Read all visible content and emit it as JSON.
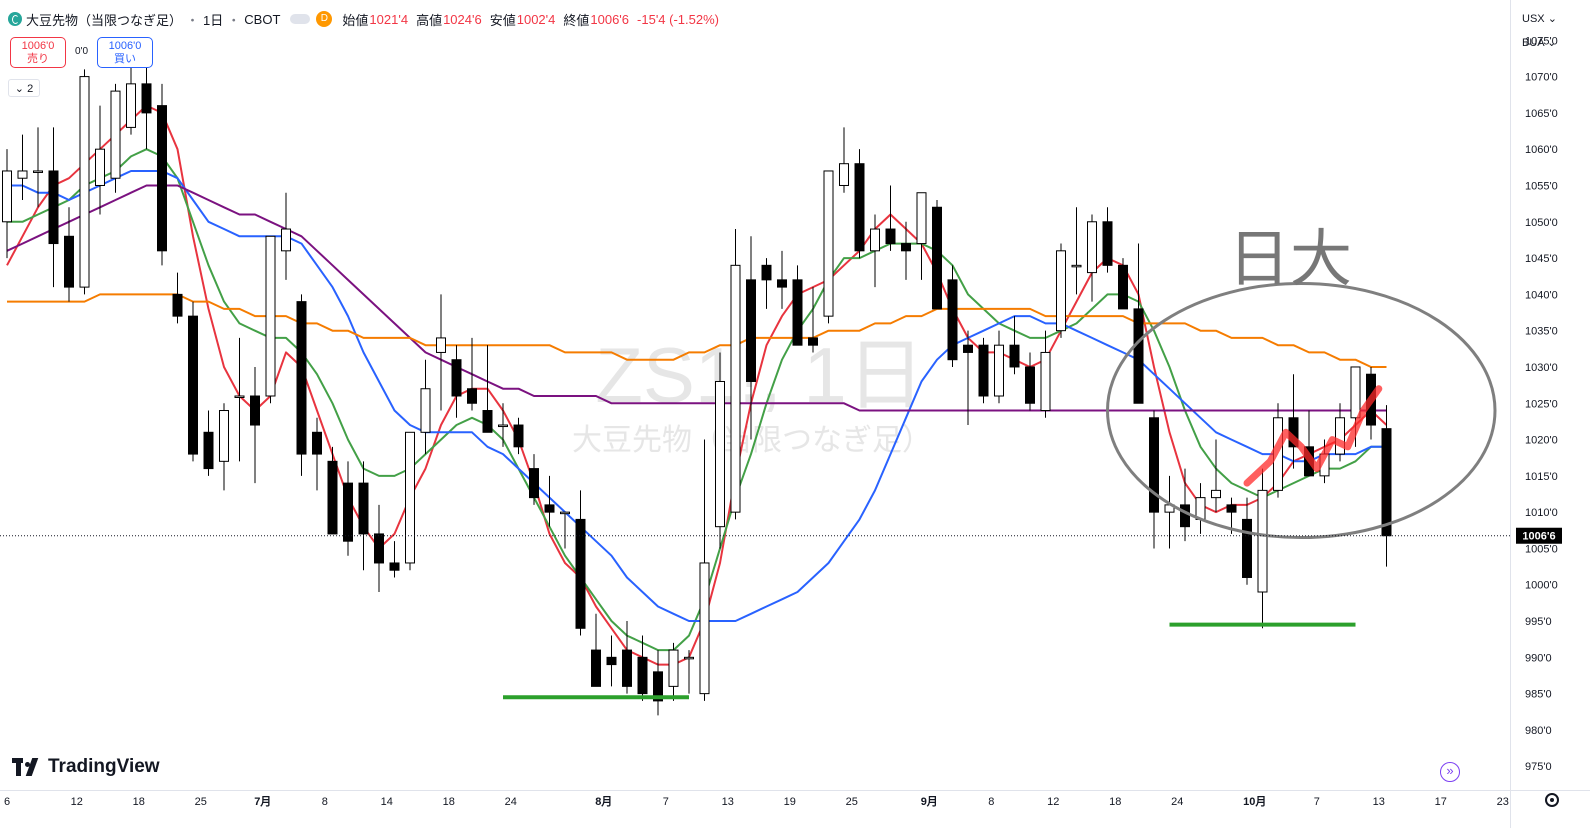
{
  "header": {
    "symbol_name": "大豆先物（当限つなぎ足）",
    "interval": "1日",
    "exchange": "CBOT",
    "open_label": "始値",
    "open_value": "1021'4",
    "high_label": "高値",
    "high_value": "1024'6",
    "low_label": "安値",
    "low_value": "1002'4",
    "close_label": "終値",
    "close_value": "1006'6",
    "change": "-15'4 (-1.52%)",
    "market_status": "D"
  },
  "trade": {
    "sell_price": "1006'0",
    "sell_label": "売り",
    "buy_price": "1006'0",
    "buy_label": "買い",
    "spread": "0'0"
  },
  "indicators_toggle": "2",
  "right_toolbar": {
    "currency": "USX",
    "unit": "BUA"
  },
  "watermark": {
    "line1": "ZS1!, 1日",
    "line2": "大豆先物（当限つなぎ足）"
  },
  "annotation_text": "日大",
  "current_price_label": "1006'6",
  "brand": "TradingView",
  "colors": {
    "up": "#ffffff",
    "down": "#000000",
    "ma_red": "#e8343f",
    "ma_green": "#43a047",
    "ma_blue": "#2962ff",
    "ma_purple": "#7b1280",
    "ma_orange": "#f57c00",
    "support": "#2ca02c",
    "circle": "#7f7f7f"
  },
  "chart_data": {
    "type": "candlestick",
    "title": "",
    "ylim": [
      972,
      1080
    ],
    "y_ticks": [
      "1075'0",
      "1070'0",
      "1065'0",
      "1060'0",
      "1055'0",
      "1050'0",
      "1045'0",
      "1040'0",
      "1035'0",
      "1030'0",
      "1025'0",
      "1020'0",
      "1015'0",
      "1010'0",
      "1005'0",
      "1000'0",
      "995'0",
      "990'0",
      "985'0",
      "980'0",
      "975'0"
    ],
    "y_tick_values": [
      1075,
      1070,
      1065,
      1060,
      1055,
      1050,
      1045,
      1040,
      1035,
      1030,
      1025,
      1020,
      1015,
      1010,
      1005,
      1000,
      995,
      990,
      985,
      980,
      975
    ],
    "x_ticks": [
      "6",
      "12",
      "18",
      "25",
      "7月",
      "8",
      "14",
      "18",
      "24",
      "8月",
      "7",
      "13",
      "19",
      "25",
      "9月",
      "8",
      "12",
      "18",
      "24",
      "10月",
      "7",
      "13",
      "17",
      "23"
    ],
    "x_tick_index": [
      0,
      4.5,
      8.5,
      12.5,
      16.5,
      20.5,
      24.5,
      28.5,
      32.5,
      38.5,
      42.5,
      46.5,
      50.5,
      54.5,
      59.5,
      63.5,
      67.5,
      71.5,
      75.5,
      80.5,
      84.5,
      88.5,
      92.5,
      96.5
    ],
    "candles": [
      {
        "o": 1050,
        "h": 1060,
        "l": 1045,
        "c": 1057
      },
      {
        "o": 1056,
        "h": 1062,
        "l": 1053,
        "c": 1057
      },
      {
        "o": 1057,
        "h": 1063,
        "l": 1052,
        "c": 1057
      },
      {
        "o": 1057,
        "h": 1063,
        "l": 1041,
        "c": 1047
      },
      {
        "o": 1048,
        "h": 1052,
        "l": 1039,
        "c": 1041
      },
      {
        "o": 1041,
        "h": 1071,
        "l": 1040,
        "c": 1070
      },
      {
        "o": 1055,
        "h": 1066,
        "l": 1051,
        "c": 1060
      },
      {
        "o": 1056,
        "h": 1069,
        "l": 1054,
        "c": 1068
      },
      {
        "o": 1063,
        "h": 1072,
        "l": 1062,
        "c": 1069
      },
      {
        "o": 1069,
        "h": 1074,
        "l": 1060,
        "c": 1065
      },
      {
        "o": 1066,
        "h": 1069,
        "l": 1044,
        "c": 1046
      },
      {
        "o": 1040,
        "h": 1043,
        "l": 1036,
        "c": 1037
      },
      {
        "o": 1037,
        "h": 1039,
        "l": 1017,
        "c": 1018
      },
      {
        "o": 1021,
        "h": 1024,
        "l": 1015,
        "c": 1016
      },
      {
        "o": 1017,
        "h": 1025,
        "l": 1013,
        "c": 1024
      },
      {
        "o": 1026,
        "h": 1034,
        "l": 1017,
        "c": 1026
      },
      {
        "o": 1026,
        "h": 1030,
        "l": 1014,
        "c": 1022
      },
      {
        "o": 1026,
        "h": 1048,
        "l": 1025,
        "c": 1048
      },
      {
        "o": 1046,
        "h": 1054,
        "l": 1042,
        "c": 1049
      },
      {
        "o": 1039,
        "h": 1040,
        "l": 1015,
        "c": 1018
      },
      {
        "o": 1021,
        "h": 1023,
        "l": 1013,
        "c": 1018
      },
      {
        "o": 1017,
        "h": 1019,
        "l": 1007,
        "c": 1007
      },
      {
        "o": 1014,
        "h": 1017,
        "l": 1004,
        "c": 1006
      },
      {
        "o": 1014,
        "h": 1017,
        "l": 1002,
        "c": 1007
      },
      {
        "o": 1007,
        "h": 1011,
        "l": 999,
        "c": 1003
      },
      {
        "o": 1003,
        "h": 1006,
        "l": 1001,
        "c": 1002
      },
      {
        "o": 1003,
        "h": 1021,
        "l": 1002,
        "c": 1021
      },
      {
        "o": 1021,
        "h": 1031,
        "l": 1018,
        "c": 1027
      },
      {
        "o": 1032,
        "h": 1040,
        "l": 1024,
        "c": 1034
      },
      {
        "o": 1031,
        "h": 1033,
        "l": 1023,
        "c": 1026
      },
      {
        "o": 1027,
        "h": 1034,
        "l": 1024,
        "c": 1025
      },
      {
        "o": 1024,
        "h": 1033,
        "l": 1022,
        "c": 1021
      },
      {
        "o": 1022,
        "h": 1025,
        "l": 1019,
        "c": 1022
      },
      {
        "o": 1022,
        "h": 1023,
        "l": 1018,
        "c": 1019
      },
      {
        "o": 1016,
        "h": 1018,
        "l": 1011,
        "c": 1012
      },
      {
        "o": 1011,
        "h": 1015,
        "l": 1008,
        "c": 1010
      },
      {
        "o": 1010,
        "h": 1010,
        "l": 1005,
        "c": 1010
      },
      {
        "o": 1009,
        "h": 1013,
        "l": 993,
        "c": 994
      },
      {
        "o": 991,
        "h": 996,
        "l": 987,
        "c": 986
      },
      {
        "o": 990,
        "h": 993,
        "l": 986,
        "c": 989
      },
      {
        "o": 991,
        "h": 995,
        "l": 985,
        "c": 986
      },
      {
        "o": 990,
        "h": 993,
        "l": 984,
        "c": 985
      },
      {
        "o": 988,
        "h": 991,
        "l": 982,
        "c": 984
      },
      {
        "o": 986,
        "h": 992,
        "l": 984,
        "c": 991
      },
      {
        "o": 990,
        "h": 991,
        "l": 985,
        "c": 990
      },
      {
        "o": 985,
        "h": 1020,
        "l": 984,
        "c": 1003
      },
      {
        "o": 1008,
        "h": 1032,
        "l": 1005,
        "c": 1028
      },
      {
        "o": 1010,
        "h": 1049,
        "l": 1009,
        "c": 1044
      },
      {
        "o": 1042,
        "h": 1048,
        "l": 1020,
        "c": 1028
      },
      {
        "o": 1044,
        "h": 1045,
        "l": 1038,
        "c": 1042
      },
      {
        "o": 1042,
        "h": 1046,
        "l": 1038,
        "c": 1041
      },
      {
        "o": 1042,
        "h": 1044,
        "l": 1033,
        "c": 1033
      },
      {
        "o": 1034,
        "h": 1041,
        "l": 1032,
        "c": 1033
      },
      {
        "o": 1037,
        "h": 1057,
        "l": 1036,
        "c": 1057
      },
      {
        "o": 1055,
        "h": 1063,
        "l": 1054,
        "c": 1058
      },
      {
        "o": 1058,
        "h": 1060,
        "l": 1045,
        "c": 1046
      },
      {
        "o": 1046,
        "h": 1051,
        "l": 1041,
        "c": 1049
      },
      {
        "o": 1049,
        "h": 1055,
        "l": 1046,
        "c": 1047
      },
      {
        "o": 1047,
        "h": 1050,
        "l": 1042,
        "c": 1046
      },
      {
        "o": 1047,
        "h": 1054,
        "l": 1042,
        "c": 1054
      },
      {
        "o": 1052,
        "h": 1053,
        "l": 1038,
        "c": 1038
      },
      {
        "o": 1042,
        "h": 1044,
        "l": 1030,
        "c": 1031
      },
      {
        "o": 1033,
        "h": 1035,
        "l": 1022,
        "c": 1032
      },
      {
        "o": 1033,
        "h": 1034,
        "l": 1025,
        "c": 1026
      },
      {
        "o": 1026,
        "h": 1035,
        "l": 1025,
        "c": 1033
      },
      {
        "o": 1033,
        "h": 1037,
        "l": 1029,
        "c": 1030
      },
      {
        "o": 1030,
        "h": 1032,
        "l": 1024,
        "c": 1025
      },
      {
        "o": 1024,
        "h": 1035,
        "l": 1023,
        "c": 1032
      },
      {
        "o": 1035,
        "h": 1047,
        "l": 1034,
        "c": 1046
      },
      {
        "o": 1044,
        "h": 1052,
        "l": 1040,
        "c": 1044
      },
      {
        "o": 1043,
        "h": 1051,
        "l": 1039,
        "c": 1050
      },
      {
        "o": 1050,
        "h": 1052,
        "l": 1043,
        "c": 1044
      },
      {
        "o": 1044,
        "h": 1045,
        "l": 1038,
        "c": 1038
      },
      {
        "o": 1038,
        "h": 1047,
        "l": 1025,
        "c": 1025
      },
      {
        "o": 1023,
        "h": 1024,
        "l": 1005,
        "c": 1010
      },
      {
        "o": 1010,
        "h": 1015,
        "l": 1005,
        "c": 1011
      },
      {
        "o": 1011,
        "h": 1016,
        "l": 1006,
        "c": 1008
      },
      {
        "o": 1009,
        "h": 1014,
        "l": 1007,
        "c": 1012
      },
      {
        "o": 1012,
        "h": 1020,
        "l": 1010,
        "c": 1013
      },
      {
        "o": 1011,
        "h": 1012,
        "l": 1007,
        "c": 1010
      },
      {
        "o": 1009,
        "h": 1012,
        "l": 1000,
        "c": 1001
      },
      {
        "o": 999,
        "h": 1016,
        "l": 994,
        "c": 1013
      },
      {
        "o": 1013,
        "h": 1025,
        "l": 1012,
        "c": 1023
      },
      {
        "o": 1023,
        "h": 1029,
        "l": 1016,
        "c": 1019
      },
      {
        "o": 1019,
        "h": 1024,
        "l": 1015,
        "c": 1015
      },
      {
        "o": 1015,
        "h": 1020,
        "l": 1014,
        "c": 1018
      },
      {
        "o": 1018,
        "h": 1025,
        "l": 1017,
        "c": 1023
      },
      {
        "o": 1023,
        "h": 1030,
        "l": 1019,
        "c": 1030
      },
      {
        "o": 1029,
        "h": 1030,
        "l": 1020,
        "c": 1022
      },
      {
        "o": 1021.5,
        "h": 1024.75,
        "l": 1002.5,
        "c": 1006.75
      }
    ],
    "series": [
      {
        "color": "#e8343f",
        "values": [
          1044,
          1048,
          1052,
          1055,
          1056,
          1058,
          1060,
          1062,
          1064,
          1066,
          1065,
          1060,
          1048,
          1038,
          1030,
          1026,
          1024,
          1026,
          1032,
          1030,
          1024,
          1018,
          1012,
          1008,
          1005,
          1007,
          1012,
          1016,
          1022,
          1026,
          1027,
          1027,
          1024,
          1020,
          1014,
          1007,
          1003,
          1001,
          997,
          994,
          991,
          990,
          989,
          989,
          990,
          995,
          1003,
          1015,
          1025,
          1033,
          1037,
          1040,
          1041,
          1042,
          1044,
          1046,
          1049,
          1051,
          1049,
          1047,
          1043,
          1038,
          1034,
          1032,
          1032,
          1031,
          1030,
          1031,
          1035,
          1039,
          1043,
          1045,
          1044,
          1040,
          1030,
          1021,
          1014,
          1011,
          1010,
          1011,
          1011,
          1012,
          1014,
          1017,
          1018,
          1019,
          1020,
          1022,
          1024,
          1022
        ]
      },
      {
        "color": "#43a047",
        "values": [
          1050,
          1050,
          1051,
          1052,
          1053,
          1055,
          1056,
          1057,
          1059,
          1060,
          1059,
          1056,
          1050,
          1044,
          1039,
          1036,
          1035,
          1034,
          1034,
          1032,
          1029,
          1025,
          1020,
          1016,
          1015,
          1015,
          1016,
          1018,
          1020,
          1022,
          1023,
          1022,
          1020,
          1016,
          1012,
          1008,
          1004,
          1001,
          998,
          995,
          993,
          992,
          991,
          991,
          993,
          998,
          1005,
          1012,
          1018,
          1025,
          1031,
          1035,
          1038,
          1042,
          1045,
          1045,
          1046,
          1047,
          1047,
          1047,
          1046,
          1044,
          1040,
          1038,
          1036,
          1035,
          1034,
          1034,
          1035,
          1036,
          1038,
          1040,
          1040,
          1039,
          1035,
          1030,
          1024,
          1019,
          1016,
          1014,
          1013,
          1012,
          1013,
          1014,
          1015,
          1016,
          1016,
          1017,
          1019,
          1019
        ]
      },
      {
        "color": "#2962ff",
        "values": [
          1055,
          1055,
          1054,
          1054,
          1053,
          1054,
          1055,
          1056,
          1057,
          1057,
          1057,
          1056,
          1053,
          1050,
          1049,
          1048,
          1048,
          1048,
          1048,
          1047,
          1044,
          1041,
          1037,
          1032,
          1028,
          1024,
          1022,
          1021,
          1021,
          1021,
          1021,
          1019,
          1018,
          1016,
          1014,
          1012,
          1010,
          1008,
          1006,
          1004,
          1001,
          999,
          997,
          996,
          995,
          995,
          995,
          995,
          996,
          997,
          998,
          999,
          1001,
          1003,
          1006,
          1009,
          1013,
          1018,
          1023,
          1028,
          1031,
          1033,
          1034,
          1035,
          1036,
          1037,
          1037,
          1036,
          1036,
          1035,
          1034,
          1033,
          1032,
          1031,
          1029,
          1027,
          1025,
          1023,
          1021,
          1020,
          1019,
          1018,
          1018,
          1017,
          1017,
          1018,
          1018,
          1018,
          1019,
          1019
        ]
      },
      {
        "color": "#7b1280",
        "values": [
          1046,
          1047,
          1048,
          1049,
          1050,
          1051,
          1052,
          1053,
          1054,
          1055,
          1055,
          1055,
          1054,
          1053,
          1052,
          1051,
          1051,
          1050,
          1049,
          1048,
          1046,
          1044,
          1042,
          1040,
          1038,
          1036,
          1034,
          1032,
          1031,
          1030,
          1029,
          1028,
          1027,
          1027,
          1026,
          1026,
          1026,
          1026,
          1026,
          1025,
          1025,
          1025,
          1025,
          1025,
          1025,
          1025,
          1025,
          1025,
          1025,
          1025,
          1025,
          1025,
          1025,
          1025,
          1025,
          1024,
          1024,
          1024,
          1024,
          1024,
          1024,
          1024,
          1024,
          1024,
          1024,
          1024,
          1024,
          1024,
          1024,
          1024,
          1024,
          1024,
          1024,
          1024,
          1024,
          1024,
          1024,
          1024,
          1024,
          1024,
          1024,
          1024,
          1024,
          1024,
          1024,
          1024,
          1024,
          1024,
          1024,
          1024
        ]
      },
      {
        "color": "#f57c00",
        "values": [
          1039,
          1039,
          1039,
          1039,
          1039,
          1039,
          1040,
          1040,
          1040,
          1040,
          1040,
          1040,
          1039,
          1039,
          1038,
          1038,
          1037,
          1037,
          1037,
          1036,
          1036,
          1035,
          1035,
          1034,
          1034,
          1034,
          1034,
          1033,
          1033,
          1033,
          1033,
          1033,
          1033,
          1033,
          1033,
          1033,
          1032,
          1032,
          1032,
          1032,
          1031,
          1031,
          1031,
          1031,
          1032,
          1032,
          1033,
          1033,
          1034,
          1034,
          1034,
          1034,
          1034,
          1035,
          1035,
          1035,
          1036,
          1036,
          1037,
          1037,
          1038,
          1038,
          1038,
          1038,
          1038,
          1038,
          1038,
          1037,
          1037,
          1037,
          1037,
          1037,
          1037,
          1036,
          1036,
          1036,
          1036,
          1035,
          1035,
          1034,
          1034,
          1034,
          1033,
          1033,
          1032,
          1032,
          1031,
          1031,
          1030,
          1030
        ]
      }
    ],
    "support_lines": [
      {
        "value": 984.5,
        "from_index": 32,
        "to_index": 44
      },
      {
        "value": 994.5,
        "from_index": 75,
        "to_index": 87
      }
    ],
    "current_price": 1006.75,
    "annotation_ellipse_center_index": 83.5,
    "annotation_ellipse_center_value": 1024,
    "annotation_ellipse_rx_bars": 12.5,
    "annotation_ellipse_ry_value": 17.5
  }
}
